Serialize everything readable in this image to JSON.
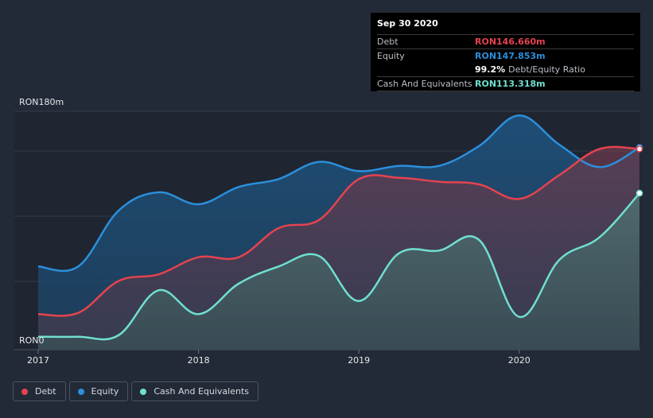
{
  "tooltip": {
    "date": "Sep 30 2020",
    "rows": [
      {
        "label": "Debt",
        "value": "RON146.660m"
      },
      {
        "label": "Equity",
        "value": "RON147.853m"
      },
      {
        "ratio_value": "99.2%",
        "ratio_label": "Debt/Equity Ratio"
      },
      {
        "label": "Cash And Equivalents",
        "value": "RON113.318m"
      }
    ]
  },
  "chart_data": {
    "type": "area",
    "y_axis_labels": {
      "top": "RON180m",
      "bottom": "RON0"
    },
    "ylim": [
      0,
      180
    ],
    "xlim": [
      2017.0,
      2020.75
    ],
    "x_ticks": [
      {
        "value": 2017,
        "label": "2017"
      },
      {
        "value": 2018,
        "label": "2018"
      },
      {
        "value": 2019,
        "label": "2019"
      },
      {
        "value": 2020,
        "label": "2020"
      }
    ],
    "grid": true,
    "legend_position": "bottom-left",
    "colors": {
      "debt": "#e5434f",
      "equity": "#2b8fdc",
      "cash": "#6fe0cf",
      "background": "#232a37"
    },
    "series": [
      {
        "name": "Debt",
        "key": "debt",
        "points": [
          [
            2017.0,
            22
          ],
          [
            2017.25,
            23
          ],
          [
            2017.5,
            47
          ],
          [
            2017.75,
            52
          ],
          [
            2018.0,
            65
          ],
          [
            2018.25,
            65
          ],
          [
            2018.5,
            87
          ],
          [
            2018.75,
            93
          ],
          [
            2019.0,
            124
          ],
          [
            2019.25,
            125
          ],
          [
            2019.5,
            122
          ],
          [
            2019.75,
            120
          ],
          [
            2020.0,
            109
          ],
          [
            2020.25,
            127
          ],
          [
            2020.5,
            146.7
          ],
          [
            2020.75,
            146.7
          ]
        ]
      },
      {
        "name": "Equity",
        "key": "equity",
        "points": [
          [
            2017.0,
            58
          ],
          [
            2017.25,
            58
          ],
          [
            2017.5,
            100
          ],
          [
            2017.75,
            114
          ],
          [
            2018.0,
            105
          ],
          [
            2018.25,
            118
          ],
          [
            2018.5,
            124
          ],
          [
            2018.75,
            137
          ],
          [
            2019.0,
            130
          ],
          [
            2019.25,
            134
          ],
          [
            2019.5,
            134
          ],
          [
            2019.75,
            149
          ],
          [
            2020.0,
            172
          ],
          [
            2020.25,
            150
          ],
          [
            2020.5,
            133
          ],
          [
            2020.75,
            147.9
          ]
        ]
      },
      {
        "name": "Cash And Equivalents",
        "key": "cash",
        "points": [
          [
            2017.0,
            5
          ],
          [
            2017.25,
            5
          ],
          [
            2017.5,
            6
          ],
          [
            2017.75,
            40
          ],
          [
            2018.0,
            22
          ],
          [
            2018.25,
            45
          ],
          [
            2018.5,
            58
          ],
          [
            2018.75,
            66
          ],
          [
            2019.0,
            32
          ],
          [
            2019.25,
            68
          ],
          [
            2019.5,
            70
          ],
          [
            2019.75,
            78
          ],
          [
            2020.0,
            20
          ],
          [
            2020.25,
            63
          ],
          [
            2020.5,
            80
          ],
          [
            2020.75,
            113.3
          ]
        ]
      }
    ]
  },
  "legend": [
    {
      "key": "debt",
      "label": "Debt"
    },
    {
      "key": "equity",
      "label": "Equity"
    },
    {
      "key": "cash",
      "label": "Cash And Equivalents"
    }
  ]
}
